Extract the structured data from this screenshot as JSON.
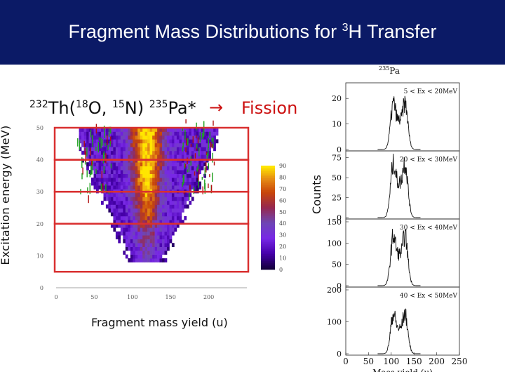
{
  "slide": {
    "title_pre": "Fragment Mass Distributions for ",
    "title_sup": "3",
    "title_post": "H Transfer",
    "reaction": {
      "target_mass": "232",
      "target": "Th(",
      "proj_mass": "18",
      "proj": "O, ",
      "eject_mass": "15",
      "eject": "N) ",
      "product_mass": "235",
      "product": "Pa*"
    },
    "arrow": "→",
    "fission": "Fission"
  },
  "colors": {
    "title_bg": "#0b1a66",
    "highlight_box": "#d93030",
    "fission_text": "#cc1111"
  },
  "chart_data": [
    {
      "type": "heatmap",
      "xlabel": "Fragment mass yield (u)",
      "ylabel": "Excitation energy (MeV)",
      "xlim": [
        0,
        250
      ],
      "ylim": [
        0,
        50
      ],
      "xticks": [
        "0",
        "50",
        "100",
        "150",
        "200"
      ],
      "yticks": [
        "0",
        "10",
        "20",
        "30",
        "40",
        "50"
      ],
      "colorbar_ticks": [
        "0",
        "10",
        "20",
        "30",
        "40",
        "50",
        "60",
        "70",
        "80",
        "90"
      ],
      "colorbar_range": [
        0,
        90
      ],
      "highlight_ranges_mev": [
        [
          5,
          20
        ],
        [
          20,
          30
        ],
        [
          30,
          40
        ],
        [
          40,
          50
        ]
      ]
    },
    {
      "type": "line",
      "title": "235Pa",
      "title_sup": "235",
      "title_main": "Pa",
      "xlabel": "Mass yield (u)",
      "ylabel": "Counts",
      "xlim": [
        0,
        250
      ],
      "xticks": [
        "0",
        "50",
        "100",
        "150",
        "200",
        "250"
      ],
      "panels": [
        {
          "label": "5 < Ex < 20MeV",
          "ylim": [
            0,
            25
          ],
          "yticks": [
            "0",
            "10",
            "20"
          ]
        },
        {
          "label": "20 < Ex < 30MeV",
          "ylim": [
            0,
            80
          ],
          "yticks": [
            "0",
            "25",
            "50",
            "75"
          ]
        },
        {
          "label": "30 < Ex < 40MeV",
          "ylim": [
            0,
            150
          ],
          "yticks": [
            "0",
            "50",
            "100",
            "150"
          ]
        },
        {
          "label": "40 < Ex < 50MeV",
          "ylim": [
            0,
            200
          ],
          "yticks": [
            "0",
            "100",
            "200"
          ]
        }
      ]
    }
  ]
}
